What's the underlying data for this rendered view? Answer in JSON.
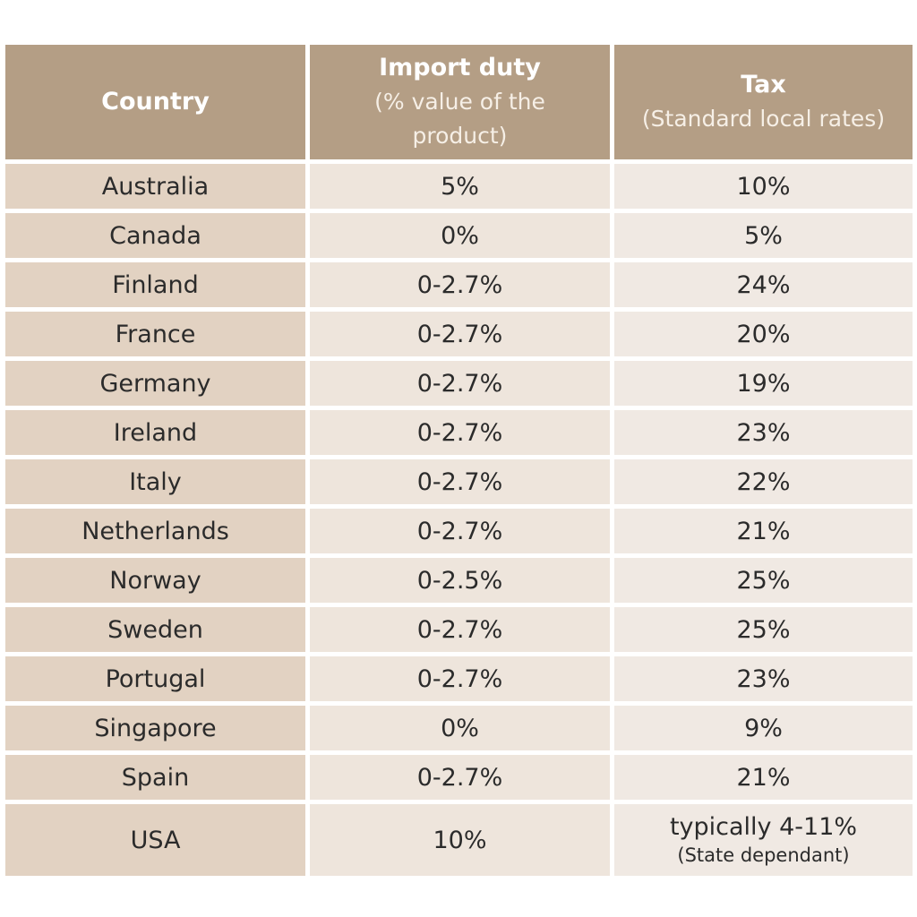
{
  "header": {
    "country": "Country",
    "import_title": "Import duty",
    "import_sub_1": "(% value of the",
    "import_sub_2": "product)",
    "tax_title": "Tax",
    "tax_sub": "(Standard local rates)"
  },
  "rows": [
    {
      "country": "Australia",
      "duty": "5%",
      "tax": "10%"
    },
    {
      "country": "Canada",
      "duty": "0%",
      "tax": "5%"
    },
    {
      "country": "Finland",
      "duty": "0-2.7%",
      "tax": "24%"
    },
    {
      "country": "France",
      "duty": "0-2.7%",
      "tax": "20%"
    },
    {
      "country": "Germany",
      "duty": "0-2.7%",
      "tax": "19%"
    },
    {
      "country": "Ireland",
      "duty": "0-2.7%",
      "tax": "23%"
    },
    {
      "country": "Italy",
      "duty": "0-2.7%",
      "tax": "22%"
    },
    {
      "country": "Netherlands",
      "duty": "0-2.7%",
      "tax": "21%"
    },
    {
      "country": "Norway",
      "duty": "0-2.5%",
      "tax": "25%"
    },
    {
      "country": "Sweden",
      "duty": "0-2.7%",
      "tax": "25%"
    },
    {
      "country": "Portugal",
      "duty": "0-2.7%",
      "tax": "23%"
    },
    {
      "country": "Singapore",
      "duty": "0%",
      "tax": "9%"
    },
    {
      "country": "Spain",
      "duty": "0-2.7%",
      "tax": "21%"
    },
    {
      "country": "USA",
      "duty": "10%",
      "tax": "typically 4-11%",
      "tax_note": "(State dependant)"
    }
  ],
  "colors": {
    "header_bg": "#b49e85",
    "country_col_bg": "#e2d2c2",
    "duty_col_bg": "#eee5dc",
    "tax_col_bg": "#f0e9e3"
  }
}
